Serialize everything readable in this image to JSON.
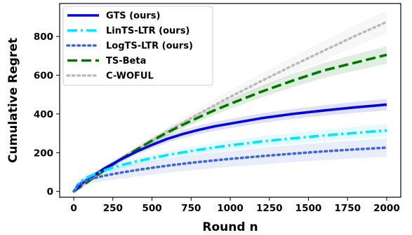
{
  "chart_data": {
    "type": "line",
    "xlabel": "Round n",
    "ylabel": "Cumulative Regret",
    "xlim": [
      -90,
      2090
    ],
    "ylim": [
      -30,
      970
    ],
    "xticks": [
      0,
      250,
      500,
      750,
      1000,
      1250,
      1500,
      1750,
      2000
    ],
    "yticks": [
      0,
      200,
      400,
      600,
      800
    ],
    "grid": false,
    "legend_position": "top-left",
    "series": [
      {
        "name": "GTS (ours)",
        "color": "#0000dd",
        "style": "solid",
        "x": [
          0,
          50,
          100,
          200,
          300,
          400,
          500,
          600,
          700,
          800,
          900,
          1000,
          1200,
          1400,
          1600,
          1800,
          2000
        ],
        "y": [
          0,
          40,
          68,
          120,
          165,
          205,
          240,
          272,
          297,
          318,
          336,
          350,
          378,
          400,
          418,
          434,
          448
        ],
        "band": [
          10,
          12,
          14,
          15,
          16,
          17,
          18,
          20,
          21,
          22,
          23,
          24,
          25,
          26,
          27,
          28,
          30
        ]
      },
      {
        "name": "LinTS-LTR (ours)",
        "color": "#00e5ff",
        "style": "dashdot",
        "x": [
          0,
          25,
          50,
          100,
          200,
          300,
          400,
          500,
          600,
          700,
          800,
          900,
          1000,
          1200,
          1400,
          1600,
          1800,
          2000
        ],
        "y": [
          0,
          35,
          55,
          78,
          110,
          135,
          155,
          172,
          188,
          202,
          215,
          227,
          238,
          258,
          274,
          289,
          302,
          315
        ],
        "band": [
          10,
          12,
          14,
          15,
          16,
          17,
          18,
          19,
          20,
          21,
          22,
          23,
          24,
          26,
          28,
          29,
          30,
          32
        ]
      },
      {
        "name": "LogTS-LTR (ours)",
        "color": "#3f66e0",
        "style": "dotted",
        "x": [
          0,
          25,
          50,
          100,
          200,
          300,
          400,
          500,
          600,
          700,
          800,
          900,
          1000,
          1200,
          1400,
          1600,
          1800,
          2000
        ],
        "y": [
          0,
          30,
          45,
          62,
          82,
          97,
          110,
          122,
          133,
          143,
          152,
          160,
          168,
          182,
          195,
          207,
          217,
          226
        ],
        "band": [
          10,
          15,
          20,
          24,
          28,
          31,
          33,
          35,
          37,
          38,
          39,
          40,
          41,
          43,
          44,
          45,
          46,
          48
        ]
      },
      {
        "name": "TS-Beta",
        "color": "#007700",
        "style": "dashed",
        "x": [
          0,
          100,
          200,
          300,
          400,
          500,
          600,
          700,
          800,
          900,
          1000,
          1200,
          1400,
          1600,
          1800,
          2000
        ],
        "y": [
          0,
          55,
          112,
          165,
          215,
          262,
          305,
          345,
          383,
          419,
          452,
          515,
          572,
          625,
          665,
          705
        ],
        "band": [
          5,
          8,
          10,
          12,
          14,
          16,
          18,
          20,
          22,
          24,
          26,
          30,
          34,
          38,
          42,
          45
        ]
      },
      {
        "name": "C-WOFUL",
        "color": "#bbbbbb",
        "style": "dotted",
        "x": [
          0,
          100,
          200,
          300,
          400,
          500,
          600,
          700,
          800,
          900,
          1000,
          1200,
          1400,
          1600,
          1800,
          2000
        ],
        "y": [
          0,
          55,
          110,
          163,
          213,
          262,
          310,
          356,
          401,
          445,
          488,
          570,
          650,
          727,
          803,
          875
        ],
        "band": [
          5,
          8,
          11,
          14,
          17,
          20,
          23,
          26,
          29,
          32,
          35,
          40,
          45,
          50,
          55,
          60
        ]
      }
    ]
  }
}
